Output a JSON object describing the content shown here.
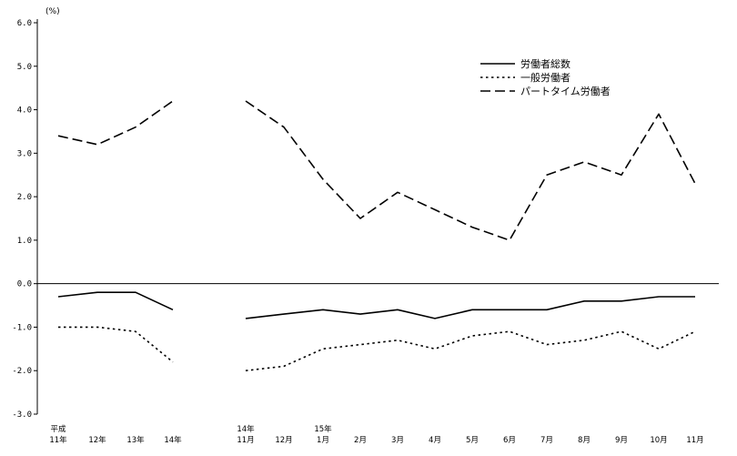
{
  "chart_data": {
    "type": "line",
    "title": "",
    "unit_label": "(%)",
    "ylim": [
      -3.0,
      6.0
    ],
    "yticks": [
      "6.0",
      "5.0",
      "4.0",
      "3.0",
      "2.0",
      "1.0",
      "0.0",
      "-1.0",
      "-2.0",
      "-3.0"
    ],
    "grid": false,
    "legend_position": "top-right",
    "x_labels": [
      [
        "平成",
        "11年"
      ],
      [
        "12年"
      ],
      [
        "13年"
      ],
      [
        "14年"
      ],
      [
        "14年",
        "11月"
      ],
      [
        "12月"
      ],
      [
        "15年",
        "1月"
      ],
      [
        "2月"
      ],
      [
        "3月"
      ],
      [
        "4月"
      ],
      [
        "5月"
      ],
      [
        "6月"
      ],
      [
        "7月"
      ],
      [
        "8月"
      ],
      [
        "9月"
      ],
      [
        "10月"
      ],
      [
        "11月"
      ]
    ],
    "segments": [
      [
        0,
        3
      ],
      [
        4,
        16
      ]
    ],
    "series": [
      {
        "name": "労働者総数",
        "style": "solid",
        "values": [
          -0.3,
          -0.2,
          -0.2,
          -0.6,
          -0.8,
          -0.7,
          -0.6,
          -0.7,
          -0.6,
          -0.8,
          -0.6,
          -0.6,
          -0.6,
          -0.4,
          -0.4,
          -0.3,
          -0.3
        ]
      },
      {
        "name": "一般労働者",
        "style": "dotted",
        "values": [
          -1.0,
          -1.0,
          -1.1,
          -1.8,
          -2.0,
          -1.9,
          -1.5,
          -1.4,
          -1.3,
          -1.5,
          -1.2,
          -1.1,
          -1.4,
          -1.3,
          -1.1,
          -1.5,
          -1.1
        ]
      },
      {
        "name": "パートタイム労働者",
        "style": "dashed",
        "values": [
          3.4,
          3.2,
          3.6,
          4.2,
          4.2,
          3.6,
          2.4,
          1.5,
          2.1,
          1.7,
          1.3,
          1.0,
          2.5,
          2.8,
          2.5,
          3.9,
          2.3
        ]
      }
    ]
  }
}
